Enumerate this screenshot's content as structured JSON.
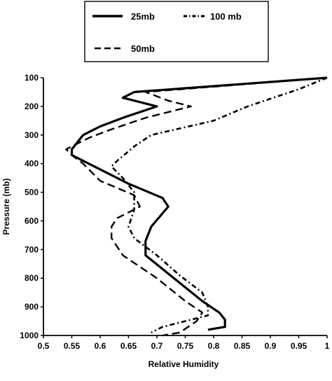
{
  "chart_data": {
    "type": "line",
    "xlabel": "Relative Humidity",
    "ylabel": "Pressure (mb)",
    "xlim": [
      0.5,
      1.0
    ],
    "ylim": [
      1000,
      100
    ],
    "y_inverted": true,
    "xticks": [
      "0.5",
      "0.55",
      "0.6",
      "0.65",
      "0.7",
      "0.75",
      "0.8",
      "0.85",
      "0.9",
      "0.95",
      "1"
    ],
    "yticks": [
      "100",
      "200",
      "300",
      "400",
      "500",
      "600",
      "700",
      "800",
      "900",
      "1000"
    ],
    "grid": false,
    "legend_position": "top-left",
    "series": [
      {
        "name": "25mb",
        "style": "solid",
        "color": "#000000",
        "points": [
          [
            1.0,
            100
          ],
          [
            0.66,
            150
          ],
          [
            0.64,
            170
          ],
          [
            0.7,
            200
          ],
          [
            0.64,
            240
          ],
          [
            0.6,
            270
          ],
          [
            0.57,
            300
          ],
          [
            0.55,
            350
          ],
          [
            0.55,
            370
          ],
          [
            0.58,
            400
          ],
          [
            0.65,
            470
          ],
          [
            0.71,
            520
          ],
          [
            0.72,
            550
          ],
          [
            0.69,
            620
          ],
          [
            0.68,
            670
          ],
          [
            0.68,
            720
          ],
          [
            0.73,
            800
          ],
          [
            0.78,
            880
          ],
          [
            0.81,
            920
          ],
          [
            0.82,
            945
          ],
          [
            0.82,
            970
          ],
          [
            0.79,
            980
          ]
        ]
      },
      {
        "name": "100 mb",
        "style": "dash-dot",
        "color": "#000000",
        "points": [
          [
            1.0,
            100
          ],
          [
            0.95,
            140
          ],
          [
            0.86,
            200
          ],
          [
            0.8,
            250
          ],
          [
            0.69,
            300
          ],
          [
            0.66,
            340
          ],
          [
            0.63,
            390
          ],
          [
            0.62,
            410
          ],
          [
            0.64,
            450
          ],
          [
            0.66,
            500
          ],
          [
            0.66,
            560
          ],
          [
            0.65,
            620
          ],
          [
            0.66,
            660
          ],
          [
            0.7,
            720
          ],
          [
            0.74,
            790
          ],
          [
            0.78,
            850
          ],
          [
            0.79,
            900
          ],
          [
            0.79,
            930
          ],
          [
            0.71,
            970
          ],
          [
            0.69,
            990
          ]
        ]
      },
      {
        "name": "50mb",
        "style": "dashed",
        "color": "#000000",
        "points": [
          [
            1.0,
            100
          ],
          [
            0.68,
            150
          ],
          [
            0.72,
            180
          ],
          [
            0.76,
            200
          ],
          [
            0.68,
            240
          ],
          [
            0.62,
            280
          ],
          [
            0.58,
            310
          ],
          [
            0.55,
            340
          ],
          [
            0.54,
            350
          ],
          [
            0.55,
            370
          ],
          [
            0.57,
            400
          ],
          [
            0.6,
            460
          ],
          [
            0.66,
            510
          ],
          [
            0.67,
            550
          ],
          [
            0.63,
            590
          ],
          [
            0.62,
            620
          ],
          [
            0.62,
            660
          ],
          [
            0.64,
            720
          ],
          [
            0.7,
            800
          ],
          [
            0.75,
            880
          ],
          [
            0.78,
            920
          ],
          [
            0.77,
            950
          ],
          [
            0.74,
            990
          ],
          [
            0.71,
            1000
          ]
        ]
      }
    ]
  }
}
